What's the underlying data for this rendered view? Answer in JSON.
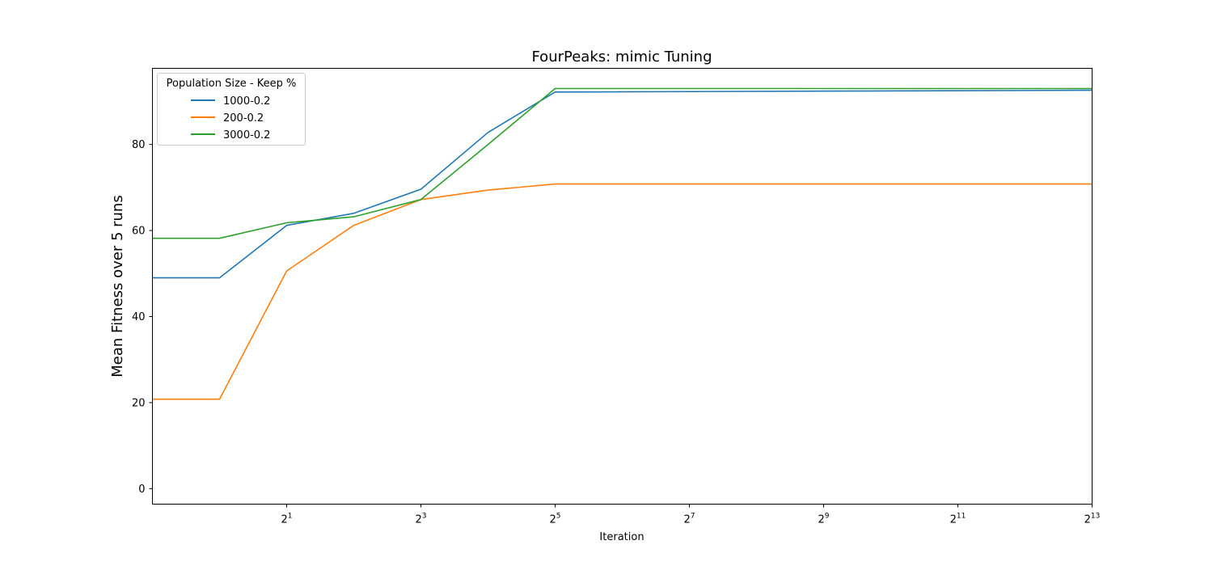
{
  "chart_data": {
    "type": "line",
    "title": "FourPeaks: mimic Tuning",
    "xlabel": "Iteration",
    "ylabel": "Mean Fitness over 5 runs",
    "x_scale": "log2",
    "x": [
      0.5,
      1,
      2,
      4,
      8,
      16,
      32,
      8192
    ],
    "xlim": [
      0.5,
      8192
    ],
    "ylim": [
      -3.6,
      97.7
    ],
    "x_ticks": [
      {
        "value": 2,
        "base": "2",
        "exp": "1"
      },
      {
        "value": 8,
        "base": "2",
        "exp": "3"
      },
      {
        "value": 32,
        "base": "2",
        "exp": "5"
      },
      {
        "value": 128,
        "base": "2",
        "exp": "7"
      },
      {
        "value": 512,
        "base": "2",
        "exp": "9"
      },
      {
        "value": 2048,
        "base": "2",
        "exp": "11"
      },
      {
        "value": 8192,
        "base": "2",
        "exp": "13"
      }
    ],
    "y_ticks": [
      0,
      20,
      40,
      60,
      80
    ],
    "grid": false,
    "legend": {
      "title": "Population Size - Keep %",
      "placement": "top-left"
    },
    "series": [
      {
        "name": "1000-0.2",
        "color": "#1f77b4",
        "values": [
          49,
          49,
          61.2,
          64,
          69.6,
          82.8,
          92.2,
          92.6
        ]
      },
      {
        "name": "200-0.2",
        "color": "#ff7f0e",
        "values": [
          20.8,
          20.8,
          50.6,
          61.2,
          67.2,
          69.4,
          70.8,
          70.8
        ]
      },
      {
        "name": "3000-0.2",
        "color": "#2ca02c",
        "values": [
          58.2,
          58.2,
          61.8,
          63.2,
          67.2,
          80,
          93,
          93
        ]
      }
    ]
  }
}
